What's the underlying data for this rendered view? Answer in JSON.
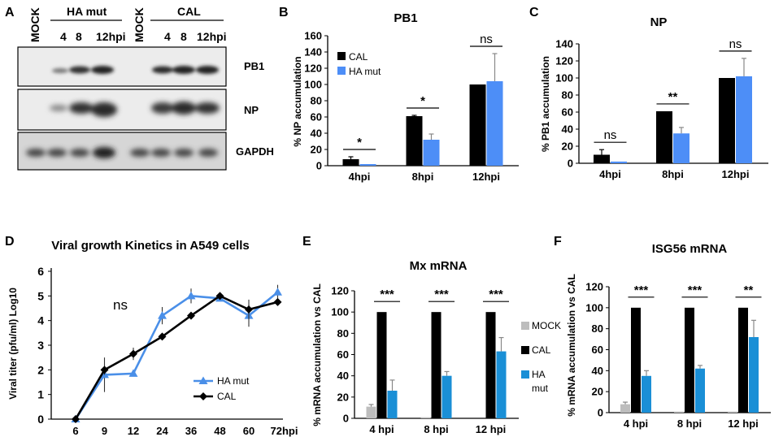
{
  "panel_labels": {
    "a": "A",
    "b": "B",
    "c": "C",
    "d": "D",
    "e": "E",
    "f": "F"
  },
  "blot": {
    "mock_left": "MOCK",
    "mock_right": "MOCK",
    "group_ha": "HA mut",
    "group_cal": "CAL",
    "times_ha": [
      "4",
      "8",
      "12hpi"
    ],
    "times_cal": [
      "4",
      "8",
      "12hpi"
    ],
    "rows": [
      "PB1",
      "NP",
      "GAPDH"
    ]
  },
  "colors": {
    "cal": "#000000",
    "ha": "#4d8ef7",
    "ha_e": "#1a8fd6",
    "mock": "#bdbdbd",
    "line_ha": "#4a8fe8"
  },
  "chart_data": [
    {
      "id": "b",
      "type": "bar",
      "title": "PB1",
      "ylabel": "% NP  accumulation",
      "ylim": [
        0,
        160
      ],
      "yticks": [
        0,
        20,
        40,
        60,
        80,
        100,
        120,
        140,
        160
      ],
      "categories": [
        "4hpi",
        "8hpi",
        "12hpi"
      ],
      "series": [
        {
          "name": "CAL",
          "values": [
            8,
            61,
            100
          ],
          "errors": [
            3,
            1,
            0
          ]
        },
        {
          "name": "HA mut",
          "values": [
            2,
            32,
            104
          ],
          "errors": [
            0,
            7,
            34
          ]
        }
      ],
      "significance": [
        "*",
        "*",
        "ns"
      ],
      "legend": [
        "CAL",
        "HA mut"
      ]
    },
    {
      "id": "c",
      "type": "bar",
      "title": "NP",
      "ylabel": "% PB1  accumulation",
      "ylim": [
        0,
        140
      ],
      "yticks": [
        0,
        20,
        40,
        60,
        80,
        100,
        120,
        140
      ],
      "categories": [
        "4hpi",
        "8hpi",
        "12hpi"
      ],
      "series": [
        {
          "name": "CAL",
          "values": [
            10,
            61,
            100
          ],
          "errors": [
            6,
            0,
            0
          ]
        },
        {
          "name": "HA mut",
          "values": [
            2,
            35,
            102
          ],
          "errors": [
            0,
            7,
            21
          ]
        }
      ],
      "significance": [
        "ns",
        "**",
        "ns"
      ]
    },
    {
      "id": "d",
      "type": "line",
      "title": "Viral growth Kinetics in A549 cells",
      "ylabel": "Viral titer (pfu/ml) Log10",
      "ylim": [
        0,
        6
      ],
      "yticks": [
        0,
        1,
        2,
        3,
        4,
        5,
        6
      ],
      "categories": [
        "6",
        "9",
        "12",
        "24",
        "36",
        "48",
        "60",
        "72hpi"
      ],
      "series": [
        {
          "name": "HA mut",
          "values": [
            0,
            1.8,
            1.85,
            4.2,
            5.0,
            4.9,
            4.2,
            5.15
          ],
          "errors": [
            0,
            0.7,
            0,
            0.35,
            0.3,
            0,
            0.45,
            0.3
          ]
        },
        {
          "name": "CAL",
          "values": [
            0,
            2.0,
            2.65,
            3.35,
            4.2,
            5.0,
            4.45,
            4.75
          ],
          "errors": [
            0,
            0.2,
            0.25,
            0.1,
            0.15,
            0.1,
            0.4,
            0
          ]
        }
      ],
      "annotation": "ns"
    },
    {
      "id": "e",
      "type": "bar",
      "title": "Mx mRNA",
      "ylabel": "% mRNA accumulation vs CAL",
      "ylim": [
        0,
        120
      ],
      "yticks": [
        0,
        20,
        40,
        60,
        80,
        100,
        120
      ],
      "categories": [
        "4 hpi",
        "8 hpi",
        "12 hpi"
      ],
      "series": [
        {
          "name": "MOCK",
          "values": [
            11,
            1,
            0
          ],
          "errors": [
            2,
            0,
            0
          ]
        },
        {
          "name": "CAL",
          "values": [
            100,
            100,
            100
          ],
          "errors": [
            0,
            0,
            0
          ]
        },
        {
          "name": "HA mut",
          "values": [
            26,
            40,
            63
          ],
          "errors": [
            10,
            4,
            13
          ]
        }
      ],
      "significance": [
        "***",
        "***",
        "***"
      ],
      "legend": [
        "MOCK",
        "CAL",
        "HA",
        "mut"
      ]
    },
    {
      "id": "f",
      "type": "bar",
      "title": "ISG56 mRNA",
      "ylabel": "% mRNA accumulation vs CAL",
      "ylim": [
        0,
        120
      ],
      "yticks": [
        0,
        20,
        40,
        60,
        80,
        100,
        120
      ],
      "categories": [
        "4 hpi",
        "8 hpi",
        "12 hpi"
      ],
      "series": [
        {
          "name": "MOCK",
          "values": [
            8,
            1,
            1
          ],
          "errors": [
            2,
            0,
            0
          ]
        },
        {
          "name": "CAL",
          "values": [
            100,
            100,
            100
          ],
          "errors": [
            0,
            0,
            0
          ]
        },
        {
          "name": "HA mut",
          "values": [
            35,
            42,
            72
          ],
          "errors": [
            5,
            3,
            16
          ]
        }
      ],
      "significance": [
        "***",
        "***",
        "**"
      ]
    }
  ]
}
